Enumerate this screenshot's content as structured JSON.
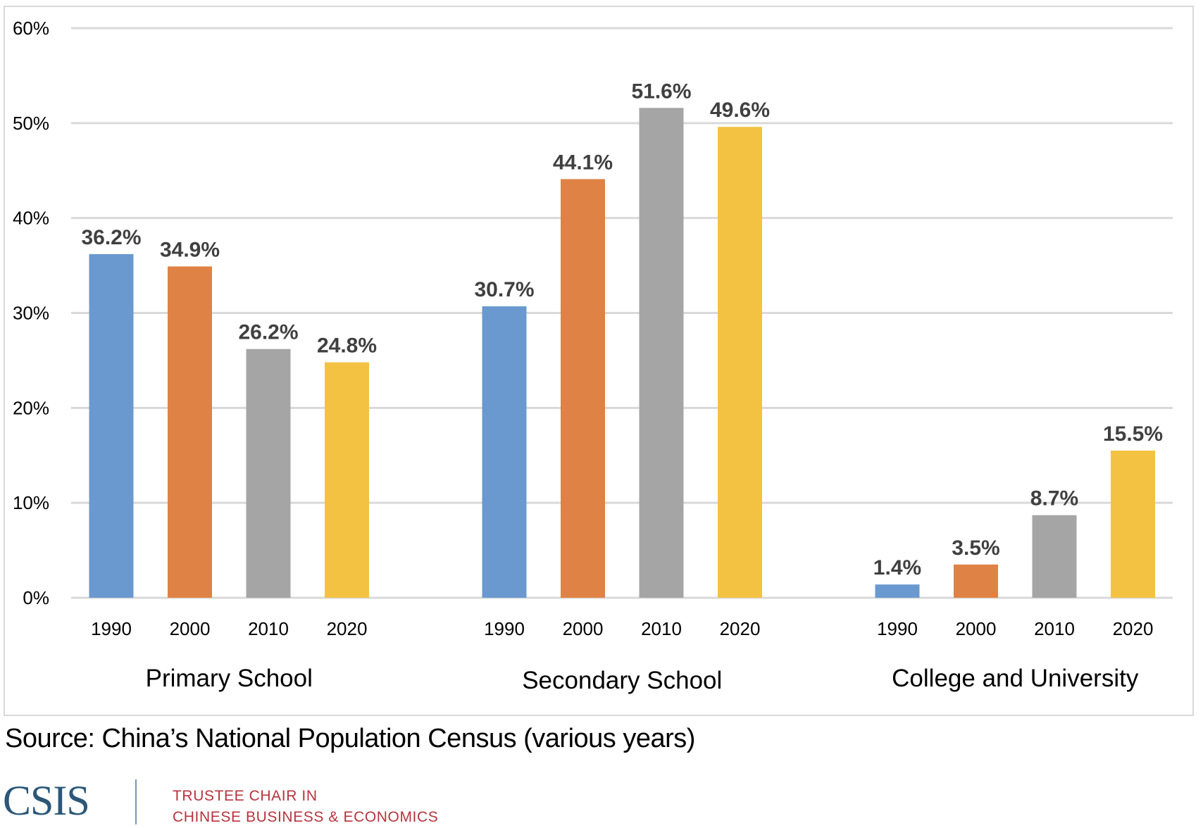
{
  "chart_data": {
    "type": "bar",
    "title": "",
    "xlabel": "",
    "ylabel": "",
    "ylim": [
      0,
      60
    ],
    "y_ticks": [
      "0%",
      "10%",
      "20%",
      "30%",
      "40%",
      "50%",
      "60%"
    ],
    "y_tick_values": [
      0,
      10,
      20,
      30,
      40,
      50,
      60
    ],
    "grid": true,
    "legend": "none",
    "groups": [
      "Primary School",
      "Secondary School",
      "College and University"
    ],
    "categories": [
      "1990",
      "2000",
      "2010",
      "2020"
    ],
    "series_colors": {
      "1990": "#6a99d0",
      "2000": "#df8245",
      "2010": "#a5a5a5",
      "2020": "#f4c242"
    },
    "series": [
      {
        "name": "Primary School",
        "values": [
          36.2,
          34.9,
          26.2,
          24.8
        ],
        "labels": [
          "36.2%",
          "34.9%",
          "26.2%",
          "24.8%"
        ]
      },
      {
        "name": "Secondary School",
        "values": [
          30.7,
          44.1,
          51.6,
          49.6
        ],
        "labels": [
          "30.7%",
          "44.1%",
          "51.6%",
          "49.6%"
        ]
      },
      {
        "name": "College and University",
        "values": [
          1.4,
          3.5,
          8.7,
          15.5
        ],
        "labels": [
          "1.4%",
          "3.5%",
          "8.7%",
          "15.5%"
        ]
      }
    ]
  },
  "source": "Source: China’s National Population Census (various years)",
  "footer": {
    "logo_text": "CSIS",
    "org_line1": "TRUSTEE CHAIR IN",
    "org_line2": "CHINESE BUSINESS & ECONOMICS",
    "logo_color": "#2b5778",
    "org_color": "#b8333e"
  }
}
